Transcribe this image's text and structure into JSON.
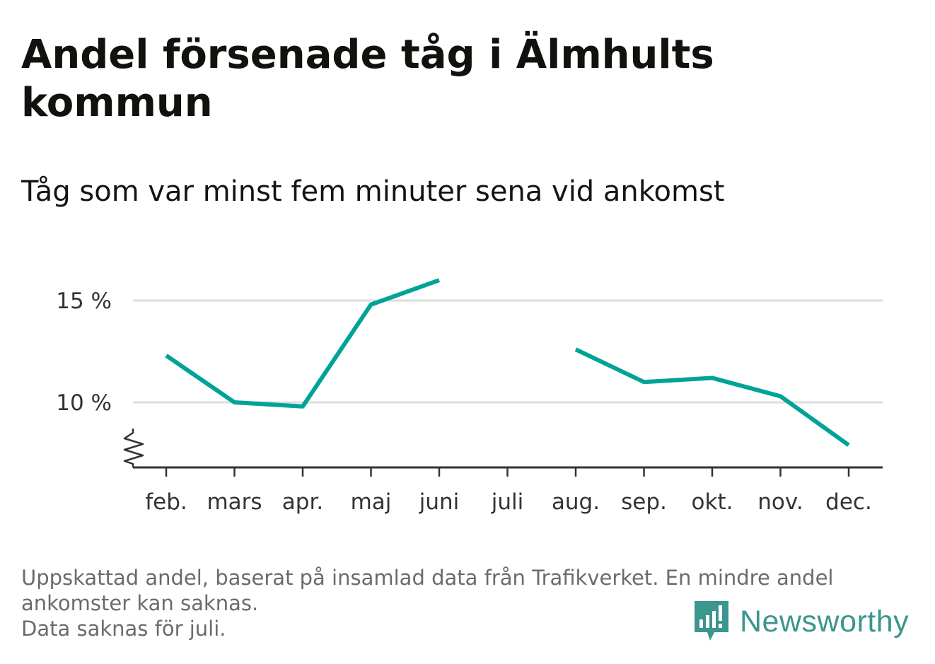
{
  "title": "Andel försenade tåg i Älmhults kommun",
  "subtitle": "Tåg som var minst fem minuter sena vid ankomst",
  "footnote": {
    "line1": "Uppskattad andel, baserat på insamlad data från Trafikverket. En mindre andel ankomster kan saknas.",
    "line2": "Data saknas för juli."
  },
  "logo": {
    "text": "Newsworthy",
    "icon": "newsworthy-bar-chart-icon",
    "color": "#3a968e"
  },
  "colors": {
    "line": "#00a398",
    "grid": "#dddddd",
    "axis": "#333333"
  },
  "chart_data": {
    "type": "line",
    "title": "Andel försenade tåg i Älmhults kommun",
    "subtitle": "Tåg som var minst fem minuter sena vid ankomst",
    "categories": [
      "feb.",
      "mars",
      "apr.",
      "maj",
      "juni",
      "juli",
      "aug.",
      "sep.",
      "okt.",
      "nov.",
      "dec."
    ],
    "series": [
      {
        "values": [
          12.3,
          10.0,
          9.8,
          14.8,
          16.0,
          null,
          12.6,
          11.0,
          11.2,
          10.3,
          7.9
        ]
      }
    ],
    "y_ticks": [
      {
        "value": 10,
        "label": "10 %"
      },
      {
        "value": 15,
        "label": "15 %"
      }
    ],
    "ylim": [
      6.8,
      16.6
    ],
    "axis_break": true,
    "grid": true,
    "legend": "none"
  }
}
